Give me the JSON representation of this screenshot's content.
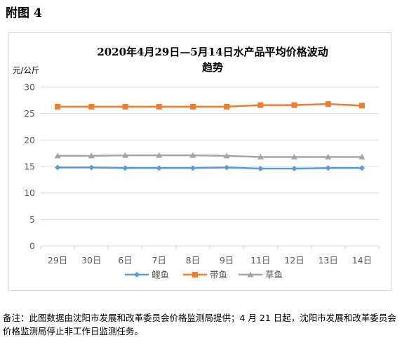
{
  "heading": "附图 4",
  "footnote": "备注：此图数据由沈阳市发展和改革委员会价格监测局提供；4 月 21 日起，沈阳市发展和改革委员会价格监测局停止非工作日监测任务。",
  "colors": {
    "series": [
      "#5B9BD5",
      "#ED7D31",
      "#A5A5A5"
    ],
    "grid": "#d9d9d9",
    "axis_text": "#595959"
  },
  "chart_data": {
    "type": "line",
    "title_lines": [
      "2020年4月29日—5月14日水产品平均价格波动",
      "趋势"
    ],
    "ylabel": "元/公斤",
    "xlabel": "",
    "categories": [
      "29日",
      "30日",
      "6日",
      "7日",
      "8日",
      "9日",
      "11日",
      "12日",
      "13日",
      "14日"
    ],
    "ylim": [
      0,
      30
    ],
    "yticks": [
      0,
      5,
      10,
      15,
      20,
      25,
      30
    ],
    "grid": true,
    "legend": "bottom",
    "series": [
      {
        "name": "鲤鱼",
        "marker": "diamond",
        "values": [
          14.8,
          14.8,
          14.7,
          14.7,
          14.7,
          14.8,
          14.6,
          14.6,
          14.7,
          14.7
        ]
      },
      {
        "name": "带鱼",
        "marker": "square",
        "values": [
          26.3,
          26.3,
          26.3,
          26.3,
          26.3,
          26.3,
          26.6,
          26.6,
          26.8,
          26.5
        ]
      },
      {
        "name": "草鱼",
        "marker": "triangle",
        "values": [
          17.0,
          17.0,
          17.1,
          17.1,
          17.1,
          17.0,
          16.8,
          16.8,
          16.8,
          16.8
        ]
      }
    ]
  }
}
